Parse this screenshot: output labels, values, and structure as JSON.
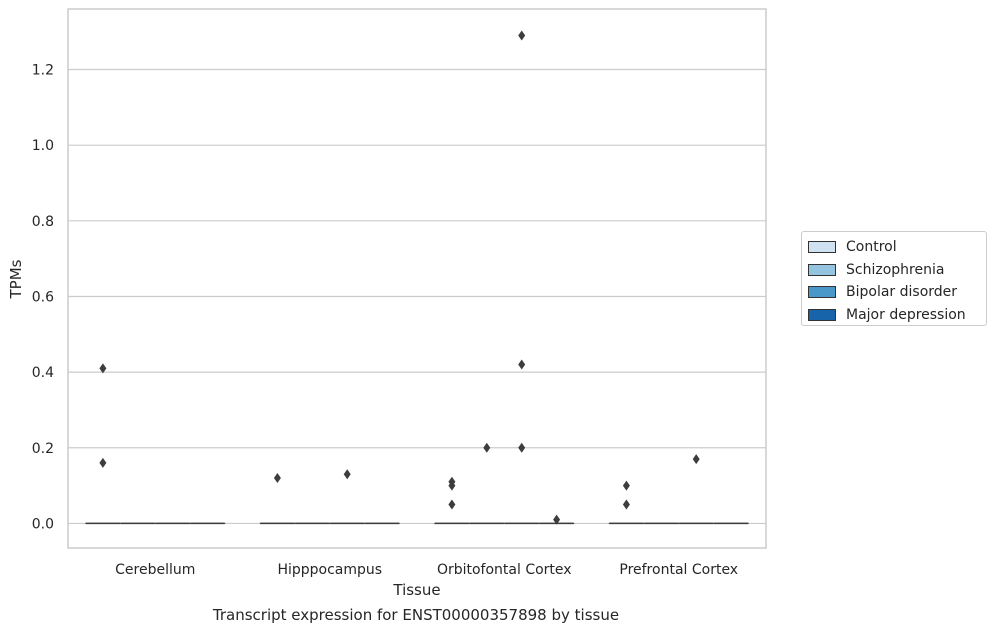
{
  "caption": "Transcript expression for ENST00000357898 by tissue",
  "chart_data": {
    "type": "box",
    "xlabel": "Tissue",
    "ylabel": "TPMs",
    "ylim": [
      -0.065,
      1.36
    ],
    "yticks": [
      "0.0",
      "0.2",
      "0.4",
      "0.6",
      "0.8",
      "1.0",
      "1.2"
    ],
    "ytick_values": [
      0.0,
      0.2,
      0.4,
      0.6,
      0.8,
      1.0,
      1.2
    ],
    "grid": "horizontal",
    "legend_position": "right",
    "categories": [
      "Cerebellum",
      "Hipppocampus",
      "Orbitofontal Cortex",
      "Prefrontal Cortex"
    ],
    "series": [
      {
        "name": "Control",
        "color": "#d0e1f2",
        "boxes": [
          {
            "median": 0,
            "q1": 0,
            "q3": 0,
            "outliers": [
              0.16,
              0.41
            ]
          },
          {
            "median": 0,
            "q1": 0,
            "q3": 0,
            "outliers": [
              0.12
            ]
          },
          {
            "median": 0,
            "q1": 0,
            "q3": 0,
            "outliers": [
              0.05,
              0.1,
              0.11
            ]
          },
          {
            "median": 0,
            "q1": 0,
            "q3": 0,
            "outliers": [
              0.05,
              0.1
            ]
          }
        ]
      },
      {
        "name": "Schizophrenia",
        "color": "#94c4df",
        "boxes": [
          {
            "median": 0,
            "q1": 0,
            "q3": 0,
            "outliers": []
          },
          {
            "median": 0,
            "q1": 0,
            "q3": 0,
            "outliers": []
          },
          {
            "median": 0,
            "q1": 0,
            "q3": 0,
            "outliers": [
              0.2
            ]
          },
          {
            "median": 0,
            "q1": 0,
            "q3": 0,
            "outliers": []
          }
        ]
      },
      {
        "name": "Bipolar disorder",
        "color": "#4a98c9",
        "boxes": [
          {
            "median": 0,
            "q1": 0,
            "q3": 0,
            "outliers": []
          },
          {
            "median": 0,
            "q1": 0,
            "q3": 0,
            "outliers": [
              0.13
            ]
          },
          {
            "median": 0,
            "q1": 0,
            "q3": 0,
            "outliers": [
              0.2,
              0.42,
              1.29
            ]
          },
          {
            "median": 0,
            "q1": 0,
            "q3": 0,
            "outliers": [
              0.17
            ]
          }
        ]
      },
      {
        "name": "Major depression",
        "color": "#1764ab",
        "boxes": [
          {
            "median": 0,
            "q1": 0,
            "q3": 0,
            "outliers": []
          },
          {
            "median": 0,
            "q1": 0,
            "q3": 0,
            "outliers": []
          },
          {
            "median": 0,
            "q1": 0,
            "q3": 0,
            "outliers": [
              0.01
            ]
          },
          {
            "median": 0,
            "q1": 0,
            "q3": 0,
            "outliers": []
          }
        ]
      }
    ]
  }
}
